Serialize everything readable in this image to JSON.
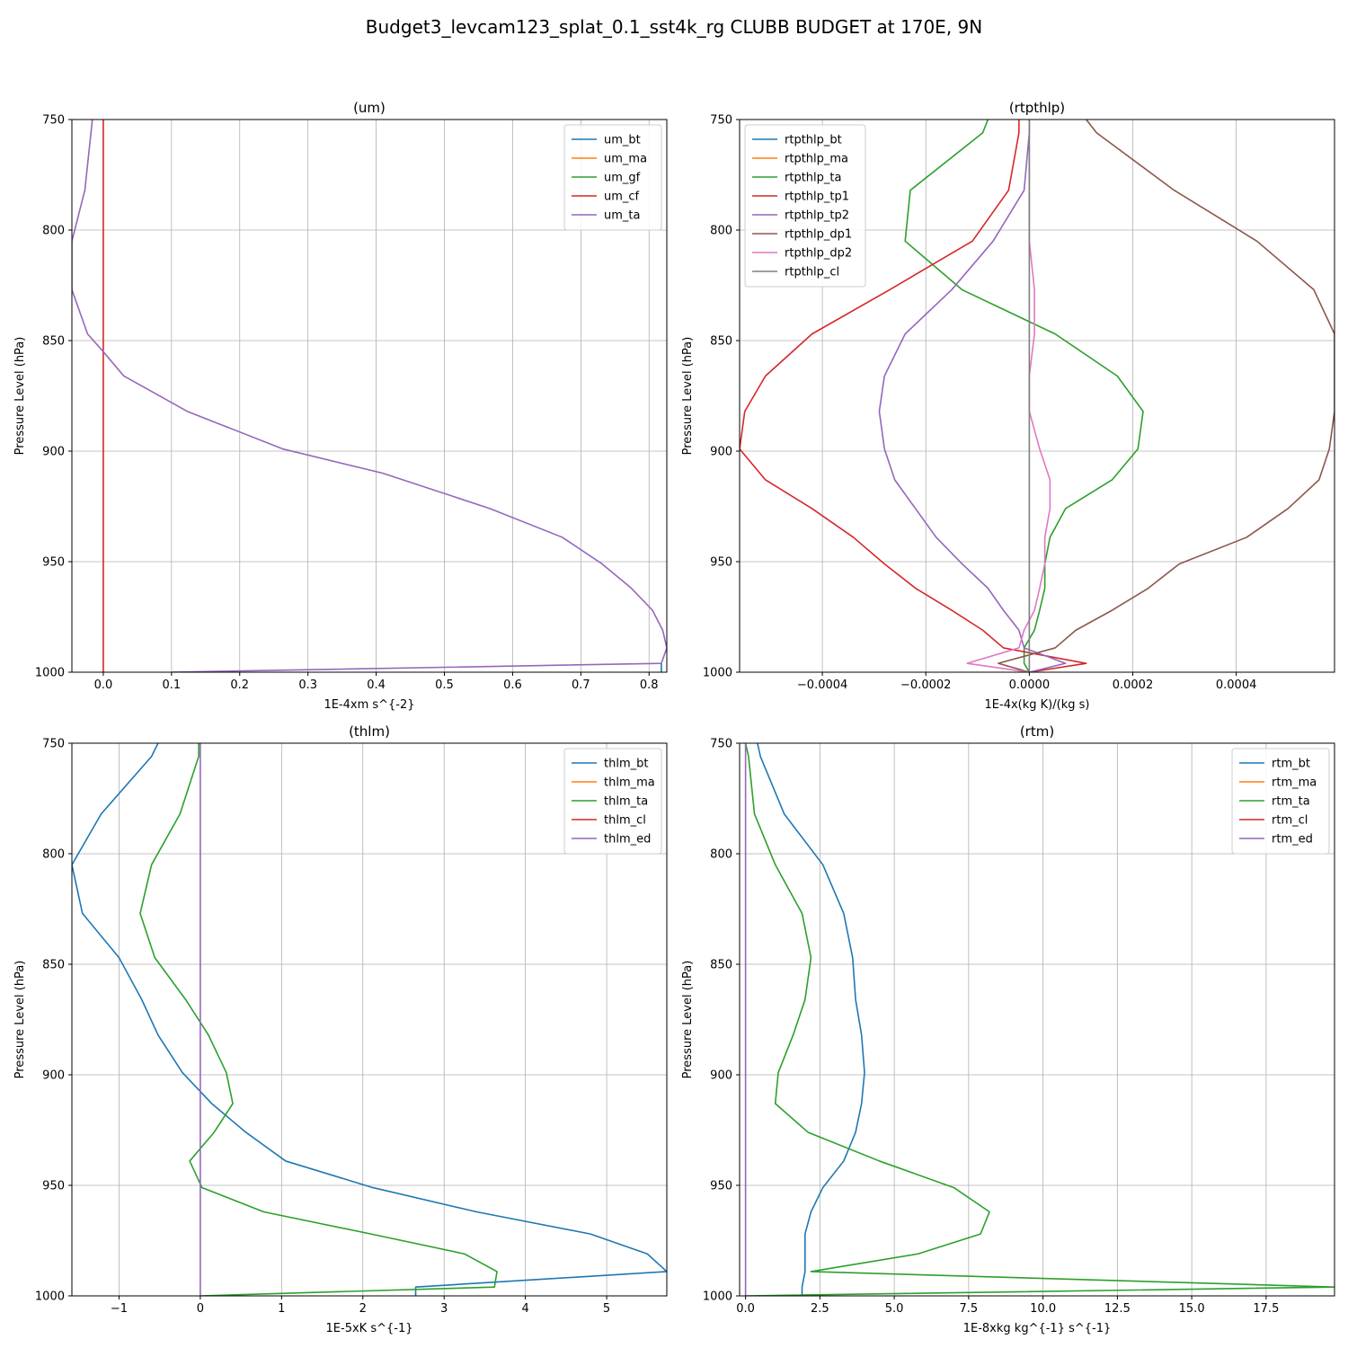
{
  "figure": {
    "title": "Budget3_levcam123_splat_0.1_sst4k_rg CLUBB BUDGET at 170E, 9N"
  },
  "colors": [
    "#1f77b4",
    "#ff7f0e",
    "#2ca02c",
    "#d62728",
    "#9467bd",
    "#8c564b",
    "#e377c2",
    "#7f7f7f"
  ],
  "chart_data": [
    {
      "type": "line",
      "title": "(um)",
      "xlabel": "1E-4xm s^{-2}",
      "ylabel": "Pressure Level (hPa)",
      "xlim": [
        -0.046,
        0.826
      ],
      "ylim": [
        1000,
        750
      ],
      "grid": true,
      "legend": "top-right",
      "xticks": [
        "0.0",
        "0.1",
        "0.2",
        "0.3",
        "0.4",
        "0.5",
        "0.6",
        "0.7",
        "0.8"
      ],
      "xtick_values": [
        0,
        0.1,
        0.2,
        0.3,
        0.4,
        0.5,
        0.6,
        0.7,
        0.8
      ],
      "yticks": [
        "750",
        "800",
        "850",
        "900",
        "950",
        "1000"
      ],
      "ytick_values": [
        750,
        800,
        850,
        900,
        950,
        1000
      ],
      "series": [
        {
          "name": "um_bt",
          "color": "#1f77b4",
          "points": [
            [
              0.818,
              996
            ],
            [
              0.818,
              1000
            ]
          ]
        },
        {
          "name": "um_ma",
          "color": "#ff7f0e",
          "points": []
        },
        {
          "name": "um_gf",
          "color": "#2ca02c",
          "points": []
        },
        {
          "name": "um_cf",
          "color": "#d62728",
          "points": [
            [
              0.0,
              750
            ],
            [
              0.0,
              1000
            ]
          ]
        },
        {
          "name": "um_ta",
          "color": "#9467bd",
          "points": [
            [
              -0.016,
              750
            ],
            [
              -0.027,
              782
            ],
            [
              -0.046,
              805
            ],
            [
              -0.046,
              827
            ],
            [
              -0.023,
              847
            ],
            [
              0.0,
              855
            ],
            [
              0.03,
              866
            ],
            [
              0.123,
              882
            ],
            [
              0.263,
              899
            ],
            [
              0.41,
              910
            ],
            [
              0.567,
              926
            ],
            [
              0.673,
              939
            ],
            [
              0.731,
              951
            ],
            [
              0.774,
              962
            ],
            [
              0.805,
              972
            ],
            [
              0.82,
              981
            ],
            [
              0.826,
              989
            ],
            [
              0.818,
              996
            ],
            [
              0.1,
              1000
            ]
          ]
        }
      ]
    },
    {
      "type": "line",
      "title": "(rtpthlp)",
      "xlabel": "1E-4x(kg K)/(kg s)",
      "ylabel": "Pressure Level (hPa)",
      "xlim": [
        -0.00056,
        0.00059
      ],
      "ylim": [
        1000,
        750
      ],
      "grid": true,
      "legend": "top-left",
      "xticks": [
        "−0.0004",
        "−0.0002",
        "0.0000",
        "0.0002",
        "0.0004"
      ],
      "xtick_values": [
        -0.0004,
        -0.0002,
        0,
        0.0002,
        0.0004
      ],
      "yticks": [
        "750",
        "800",
        "850",
        "900",
        "950",
        "1000"
      ],
      "ytick_values": [
        750,
        800,
        850,
        900,
        950,
        1000
      ],
      "series": [
        {
          "name": "rtpthlp_bt",
          "color": "#1f77b4",
          "points": []
        },
        {
          "name": "rtpthlp_ma",
          "color": "#ff7f0e",
          "points": []
        },
        {
          "name": "rtpthlp_ta",
          "color": "#2ca02c",
          "points": [
            [
              -8e-05,
              750
            ],
            [
              -9e-05,
              756
            ],
            [
              -0.00023,
              782
            ],
            [
              -0.00024,
              805
            ],
            [
              -0.00013,
              827
            ],
            [
              5e-05,
              847
            ],
            [
              0.00017,
              866
            ],
            [
              0.00022,
              882
            ],
            [
              0.00021,
              899
            ],
            [
              0.00016,
              913
            ],
            [
              7e-05,
              926
            ],
            [
              4e-05,
              939
            ],
            [
              3e-05,
              951
            ],
            [
              3e-05,
              962
            ],
            [
              2e-05,
              972
            ],
            [
              1e-05,
              981
            ],
            [
              -1e-05,
              989
            ],
            [
              -1e-05,
              996
            ],
            [
              0.0,
              1000
            ]
          ]
        },
        {
          "name": "rtpthlp_tp1",
          "color": "#d62728",
          "points": [
            [
              -2e-05,
              750
            ],
            [
              -2e-05,
              756
            ],
            [
              -4e-05,
              782
            ],
            [
              -0.00011,
              805
            ],
            [
              -0.00027,
              827
            ],
            [
              -0.00042,
              847
            ],
            [
              -0.00051,
              866
            ],
            [
              -0.00055,
              882
            ],
            [
              -0.00056,
              899
            ],
            [
              -0.00051,
              913
            ],
            [
              -0.00042,
              926
            ],
            [
              -0.00034,
              939
            ],
            [
              -0.00028,
              951
            ],
            [
              -0.00022,
              962
            ],
            [
              -0.00015,
              972
            ],
            [
              -9e-05,
              981
            ],
            [
              -5e-05,
              989
            ],
            [
              0.00011,
              996
            ],
            [
              0.0,
              1000
            ]
          ]
        },
        {
          "name": "rtpthlp_tp2",
          "color": "#9467bd",
          "points": [
            [
              0.0,
              750
            ],
            [
              0.0,
              756
            ],
            [
              -1e-05,
              782
            ],
            [
              -7e-05,
              805
            ],
            [
              -0.00015,
              827
            ],
            [
              -0.00024,
              847
            ],
            [
              -0.00028,
              866
            ],
            [
              -0.00029,
              882
            ],
            [
              -0.00028,
              899
            ],
            [
              -0.00026,
              913
            ],
            [
              -0.00022,
              926
            ],
            [
              -0.00018,
              939
            ],
            [
              -0.00013,
              951
            ],
            [
              -8e-05,
              962
            ],
            [
              -5e-05,
              972
            ],
            [
              -2e-05,
              981
            ],
            [
              -1e-05,
              989
            ],
            [
              7e-05,
              996
            ],
            [
              0.0,
              1000
            ]
          ]
        },
        {
          "name": "rtpthlp_dp1",
          "color": "#8c564b",
          "points": [
            [
              0.00011,
              750
            ],
            [
              0.00013,
              756
            ],
            [
              0.00028,
              782
            ],
            [
              0.00044,
              805
            ],
            [
              0.00055,
              827
            ],
            [
              0.00059,
              847
            ],
            [
              0.00059,
              866
            ],
            [
              0.00059,
              882
            ],
            [
              0.00058,
              899
            ],
            [
              0.00056,
              913
            ],
            [
              0.0005,
              926
            ],
            [
              0.00042,
              939
            ],
            [
              0.00029,
              951
            ],
            [
              0.00023,
              962
            ],
            [
              0.00016,
              972
            ],
            [
              9e-05,
              981
            ],
            [
              5e-05,
              989
            ],
            [
              -6e-05,
              996
            ],
            [
              0.0,
              1000
            ]
          ]
        },
        {
          "name": "rtpthlp_dp2",
          "color": "#e377c2",
          "points": [
            [
              0.0,
              750
            ],
            [
              0.0,
              782
            ],
            [
              0.0,
              805
            ],
            [
              1e-05,
              827
            ],
            [
              1e-05,
              847
            ],
            [
              0.0,
              866
            ],
            [
              0.0,
              882
            ],
            [
              2e-05,
              899
            ],
            [
              4e-05,
              913
            ],
            [
              4e-05,
              926
            ],
            [
              3e-05,
              939
            ],
            [
              3e-05,
              951
            ],
            [
              2e-05,
              962
            ],
            [
              1e-05,
              972
            ],
            [
              -1e-05,
              981
            ],
            [
              -2e-05,
              989
            ],
            [
              -0.00012,
              996
            ],
            [
              0.0,
              1000
            ]
          ]
        },
        {
          "name": "rtpthlp_cl",
          "color": "#7f7f7f",
          "points": [
            [
              0.0,
              750
            ],
            [
              0.0,
              1000
            ]
          ]
        }
      ]
    },
    {
      "type": "line",
      "title": "(thlm)",
      "xlabel": "1E-5xK s^{-1}",
      "ylabel": "Pressure Level (hPa)",
      "xlim": [
        -1.58,
        5.74
      ],
      "ylim": [
        1000,
        750
      ],
      "grid": true,
      "legend": "top-right",
      "xticks": [
        "−1",
        "0",
        "1",
        "2",
        "3",
        "4",
        "5"
      ],
      "xtick_values": [
        -1,
        0,
        1,
        2,
        3,
        4,
        5
      ],
      "yticks": [
        "750",
        "800",
        "850",
        "900",
        "950",
        "1000"
      ],
      "ytick_values": [
        750,
        800,
        850,
        900,
        950,
        1000
      ],
      "series": [
        {
          "name": "thlm_bt",
          "color": "#1f77b4",
          "points": [
            [
              -0.52,
              750
            ],
            [
              -0.6,
              756
            ],
            [
              -1.22,
              782
            ],
            [
              -1.58,
              805
            ],
            [
              -1.45,
              827
            ],
            [
              -1.0,
              847
            ],
            [
              -0.72,
              866
            ],
            [
              -0.52,
              882
            ],
            [
              -0.22,
              899
            ],
            [
              0.14,
              913
            ],
            [
              0.56,
              926
            ],
            [
              1.05,
              939
            ],
            [
              2.12,
              951
            ],
            [
              3.4,
              962
            ],
            [
              4.8,
              972
            ],
            [
              5.5,
              981
            ],
            [
              5.74,
              989
            ],
            [
              2.65,
              996
            ],
            [
              2.65,
              1000
            ]
          ]
        },
        {
          "name": "thlm_ma",
          "color": "#ff7f0e",
          "points": []
        },
        {
          "name": "thlm_ta",
          "color": "#2ca02c",
          "points": [
            [
              -0.02,
              750
            ],
            [
              -0.02,
              756
            ],
            [
              -0.25,
              782
            ],
            [
              -0.6,
              805
            ],
            [
              -0.74,
              827
            ],
            [
              -0.56,
              847
            ],
            [
              -0.18,
              866
            ],
            [
              0.1,
              882
            ],
            [
              0.32,
              899
            ],
            [
              0.4,
              913
            ],
            [
              0.17,
              926
            ],
            [
              -0.13,
              939
            ],
            [
              0.02,
              951
            ],
            [
              0.78,
              962
            ],
            [
              2.1,
              972
            ],
            [
              3.25,
              981
            ],
            [
              3.65,
              989
            ],
            [
              3.62,
              996
            ],
            [
              0.0,
              1000
            ]
          ]
        },
        {
          "name": "thlm_cl",
          "color": "#d62728",
          "points": []
        },
        {
          "name": "thlm_ed",
          "color": "#9467bd",
          "points": [
            [
              0.0,
              750
            ],
            [
              0.0,
              1000
            ]
          ]
        }
      ]
    },
    {
      "type": "line",
      "title": "(rtm)",
      "xlabel": "1E-8xkg kg^{-1} s^{-1}",
      "ylabel": "Pressure Level (hPa)",
      "xlim": [
        -0.2,
        19.8
      ],
      "ylim": [
        1000,
        750
      ],
      "grid": true,
      "legend": "top-right",
      "xticks": [
        "0.0",
        "2.5",
        "5.0",
        "7.5",
        "10.0",
        "12.5",
        "15.0",
        "17.5"
      ],
      "xtick_values": [
        0,
        2.5,
        5,
        7.5,
        10,
        12.5,
        15,
        17.5
      ],
      "yticks": [
        "750",
        "800",
        "850",
        "900",
        "950",
        "1000"
      ],
      "ytick_values": [
        750,
        800,
        850,
        900,
        950,
        1000
      ],
      "series": [
        {
          "name": "rtm_bt",
          "color": "#1f77b4",
          "points": [
            [
              0.4,
              750
            ],
            [
              0.5,
              756
            ],
            [
              1.3,
              782
            ],
            [
              2.6,
              805
            ],
            [
              3.3,
              827
            ],
            [
              3.6,
              847
            ],
            [
              3.7,
              866
            ],
            [
              3.9,
              882
            ],
            [
              4.0,
              899
            ],
            [
              3.9,
              913
            ],
            [
              3.7,
              926
            ],
            [
              3.3,
              939
            ],
            [
              2.6,
              951
            ],
            [
              2.2,
              962
            ],
            [
              2.0,
              972
            ],
            [
              2.0,
              981
            ],
            [
              2.0,
              989
            ],
            [
              1.9,
              996
            ],
            [
              1.9,
              1000
            ]
          ]
        },
        {
          "name": "rtm_ma",
          "color": "#ff7f0e",
          "points": []
        },
        {
          "name": "rtm_ta",
          "color": "#2ca02c",
          "points": [
            [
              0.0,
              750
            ],
            [
              0.1,
              756
            ],
            [
              0.3,
              782
            ],
            [
              1.0,
              805
            ],
            [
              1.9,
              827
            ],
            [
              2.2,
              847
            ],
            [
              2.0,
              866
            ],
            [
              1.6,
              882
            ],
            [
              1.1,
              899
            ],
            [
              1.0,
              913
            ],
            [
              2.1,
              926
            ],
            [
              4.5,
              939
            ],
            [
              7.0,
              951
            ],
            [
              8.2,
              962
            ],
            [
              7.9,
              972
            ],
            [
              5.8,
              981
            ],
            [
              2.2,
              989
            ],
            [
              19.8,
              996
            ],
            [
              0.0,
              1000
            ]
          ]
        },
        {
          "name": "rtm_cl",
          "color": "#d62728",
          "points": []
        },
        {
          "name": "rtm_ed",
          "color": "#9467bd",
          "points": [
            [
              0.0,
              750
            ],
            [
              0.0,
              1000
            ]
          ]
        }
      ]
    }
  ]
}
